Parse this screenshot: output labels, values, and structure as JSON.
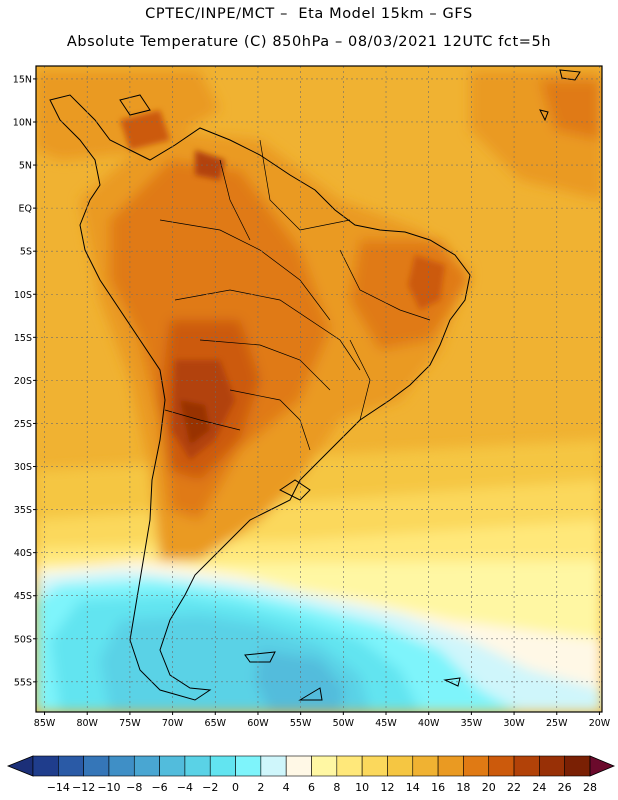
{
  "header": {
    "title_line1": "CPTEC/INPE/MCT –  Eta Model 15km – GFS",
    "title_line2": "Absolute Temperature (C) 850hPa – 08/03/2021 12UTC fct=5h"
  },
  "map": {
    "lat_labels": [
      "15N",
      "10N",
      "5N",
      "EQ",
      "5S",
      "10S",
      "15S",
      "20S",
      "25S",
      "30S",
      "35S",
      "40S",
      "45S",
      "50S",
      "55S"
    ],
    "lon_labels": [
      "85W",
      "80W",
      "75W",
      "70W",
      "65W",
      "60W",
      "55W",
      "50W",
      "45W",
      "40W",
      "35W",
      "30W",
      "25W",
      "20W"
    ],
    "lat_values": [
      15,
      10,
      5,
      0,
      -5,
      -10,
      -15,
      -20,
      -25,
      -30,
      -35,
      -40,
      -45,
      -50,
      -55
    ],
    "lon_values": [
      -85,
      -80,
      -75,
      -70,
      -65,
      -60,
      -55,
      -50,
      -45,
      -40,
      -35,
      -30,
      -25,
      -20
    ],
    "extent": {
      "lon_min": -86,
      "lon_max": -19.7,
      "lat_min": -58.5,
      "lat_max": 16.5
    }
  },
  "colorbar": {
    "labels": [
      "-14",
      "-12",
      "-10",
      "-8",
      "-6",
      "-4",
      "-2",
      "0",
      "2",
      "4",
      "6",
      "8",
      "10",
      "12",
      "14",
      "16",
      "18",
      "20",
      "22",
      "24",
      "26",
      "28"
    ],
    "colors": [
      "#1f3d8c",
      "#2a5aa6",
      "#3576b8",
      "#3f8fc6",
      "#49a6d2",
      "#52bcdc",
      "#5ad2e6",
      "#62e4f0",
      "#7ef4fb",
      "#cff6fb",
      "#fff8e6",
      "#fff7a3",
      "#ffe87a",
      "#fbd85c",
      "#f5c642",
      "#f0b232",
      "#ea9a22",
      "#e07a14",
      "#cc5a0c",
      "#b24208",
      "#983006",
      "#7a2004"
    ],
    "under_color": "#1b2f78",
    "over_color": "#6b0a2c"
  }
}
